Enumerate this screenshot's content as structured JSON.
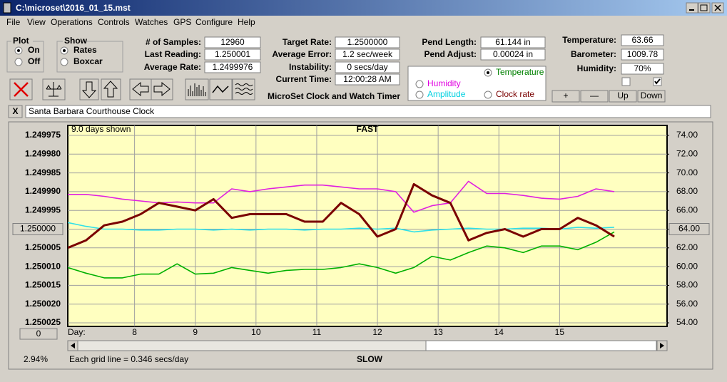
{
  "window": {
    "title": "C:\\microset\\2016_01_15.mst"
  },
  "menu": [
    "File",
    "View",
    "Operations",
    "Controls",
    "Watches",
    "GPS",
    "Configure",
    "Help"
  ],
  "plot_group": {
    "title": "Plot",
    "options": [
      "On",
      "Off"
    ],
    "selected": 0
  },
  "show_group": {
    "title": "Show",
    "options": [
      "Rates",
      "Boxcar"
    ],
    "selected": 0
  },
  "fields": [
    {
      "label": "# of Samples:",
      "value": "12960"
    },
    {
      "label": "Last Reading:",
      "value": "1.250001"
    },
    {
      "label": "Average Rate:",
      "value": "1.2499976"
    },
    {
      "label": "Target Rate:",
      "value": "1.2500000"
    },
    {
      "label": "Average Error:",
      "value": "1.2 sec/week"
    },
    {
      "label": "Instability:",
      "value": "0 secs/day"
    },
    {
      "label": "Current Time:",
      "value": "12:00:28 AM"
    },
    {
      "label": "Pend Length:",
      "value": "61.144 in"
    },
    {
      "label": "Pend Adjust:",
      "value": "0.00024 in"
    },
    {
      "label": "Temperature:",
      "value": "63.66"
    },
    {
      "label": "Barometer:",
      "value": "1009.78"
    },
    {
      "label": "Humidity:",
      "value": "70%"
    }
  ],
  "app_title": "MicroSet Clock and Watch Timer",
  "radio_options": [
    {
      "label": "Temperature",
      "color": "#008000",
      "selected": true
    },
    {
      "label": "Humidity",
      "color": "#e000e0",
      "selected": false
    },
    {
      "label": "Amplitude",
      "color": "#00d0e0",
      "selected": false
    },
    {
      "label": "Clock rate",
      "color": "#7a0000",
      "selected": false
    }
  ],
  "checkboxes": [
    false,
    true
  ],
  "buttons": [
    "+",
    "—",
    "Up",
    "Down"
  ],
  "close_button": "X",
  "clock_name": "Santa Barbara Courthouse Clock",
  "chart_data": {
    "type": "line",
    "title": "FAST",
    "bottom_label": "SLOW",
    "days_shown": "9.0 days shown",
    "x_label": "Day:",
    "grid_note": "Each grid line = 0.346 secs/day",
    "zoom": "2.94%",
    "offset_button": "0",
    "grid": true,
    "xlim": [
      6.9,
      16.77
    ],
    "xticks": [
      8,
      9,
      10,
      11,
      12,
      13,
      14,
      15
    ],
    "ylim": [
      1.250025,
      1.249975
    ],
    "yticks": [
      {
        "value": 1.250025,
        "label": "1.250025"
      },
      {
        "value": 1.25002,
        "label": "1.250020"
      },
      {
        "value": 1.250015,
        "label": "1.250015"
      },
      {
        "value": 1.25001,
        "label": "1.250010"
      },
      {
        "value": 1.250005,
        "label": "1.250005"
      },
      {
        "value": 1.25,
        "label": "1.250000"
      },
      {
        "value": 1.249995,
        "label": "1.249995"
      },
      {
        "value": 1.24999,
        "label": "1.249990"
      },
      {
        "value": 1.249985,
        "label": "1.249985"
      },
      {
        "value": 1.24998,
        "label": "1.249980"
      },
      {
        "value": 1.249975,
        "label": "1.249975"
      }
    ],
    "y2lim": [
      54,
      74
    ],
    "y2ticks": [
      {
        "value": 54,
        "label": "54.00"
      },
      {
        "value": 56,
        "label": "56.00"
      },
      {
        "value": 58,
        "label": "58.00"
      },
      {
        "value": 60,
        "label": "60.00"
      },
      {
        "value": 62,
        "label": "62.00"
      },
      {
        "value": 64,
        "label": "64.00"
      },
      {
        "value": 66,
        "label": "66.00"
      },
      {
        "value": 68,
        "label": "68.00"
      },
      {
        "value": 70,
        "label": "70.00"
      },
      {
        "value": 72,
        "label": "72.00"
      },
      {
        "value": 74,
        "label": "74.00"
      }
    ],
    "x": [
      6.9,
      7.2,
      7.5,
      7.8,
      8.1,
      8.4,
      8.7,
      9.0,
      9.3,
      9.6,
      9.9,
      10.2,
      10.5,
      10.8,
      11.1,
      11.4,
      11.7,
      12.0,
      12.3,
      12.6,
      12.9,
      13.2,
      13.5,
      13.8,
      14.1,
      14.4,
      14.7,
      15.0,
      15.3,
      15.6,
      15.9
    ],
    "series": [
      {
        "name": "Temperature",
        "color": "#00b000",
        "axis": "y2",
        "values": [
          59.9,
          59.3,
          58.8,
          58.8,
          59.2,
          59.2,
          60.3,
          59.2,
          59.3,
          59.9,
          59.6,
          59.3,
          59.6,
          59.7,
          59.7,
          59.9,
          60.3,
          59.9,
          59.3,
          59.9,
          61.1,
          60.7,
          61.5,
          62.2,
          62.0,
          61.5,
          62.2,
          62.2,
          61.8,
          62.6,
          63.7
        ]
      },
      {
        "name": "Humidity",
        "color": "#e020e0",
        "axis": "y2",
        "values": [
          67.7,
          67.7,
          67.5,
          67.2,
          67.0,
          66.8,
          66.9,
          66.8,
          66.8,
          68.3,
          68.0,
          68.3,
          68.5,
          68.7,
          68.7,
          68.5,
          68.3,
          68.3,
          68.0,
          65.8,
          66.5,
          66.8,
          69.1,
          67.8,
          67.8,
          67.6,
          67.3,
          67.2,
          67.5,
          68.3,
          68.0
        ]
      },
      {
        "name": "Amplitude",
        "color": "#30e0e8",
        "axis": "y2",
        "values": [
          64.7,
          64.3,
          64.0,
          64.0,
          63.9,
          63.9,
          64.0,
          64.0,
          63.9,
          64.0,
          63.9,
          64.0,
          64.0,
          63.9,
          64.0,
          64.0,
          64.1,
          64.0,
          64.1,
          63.7,
          63.9,
          64.0,
          64.1,
          64.0,
          64.0,
          64.1,
          64.1,
          64.0,
          64.2,
          64.1,
          64.2
        ]
      },
      {
        "name": "Clock rate",
        "color": "#7a0000",
        "values": [
          1.250005,
          1.250003,
          1.249999,
          1.249998,
          1.249996,
          1.249993,
          1.249994,
          1.249995,
          1.249992,
          1.249997,
          1.249996,
          1.249996,
          1.249996,
          1.249998,
          1.249998,
          1.249993,
          1.249996,
          1.250002,
          1.25,
          1.249988,
          1.249991,
          1.249993,
          1.250003,
          1.250001,
          1.25,
          1.250002,
          1.25,
          1.25,
          1.249997,
          1.249999,
          1.250002
        ]
      }
    ]
  }
}
